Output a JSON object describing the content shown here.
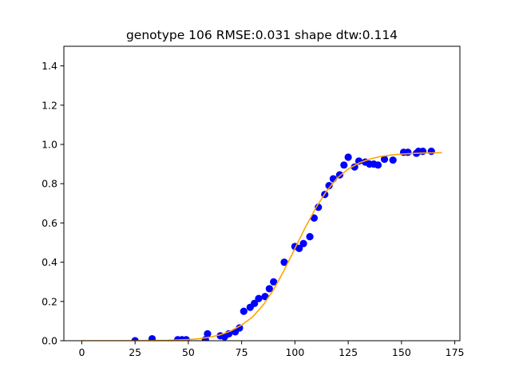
{
  "chart_data": {
    "type": "scatter",
    "title": "genotype 106 RMSE:0.031 shape dtw:0.114",
    "xlabel": "",
    "ylabel": "",
    "xlim": [
      -8.4,
      177.4
    ],
    "ylim": [
      0.0,
      1.5
    ],
    "xticks": [
      0,
      25,
      50,
      75,
      100,
      125,
      150,
      175
    ],
    "yticks": [
      0.0,
      0.2,
      0.4,
      0.6,
      0.8,
      1.0,
      1.2,
      1.4
    ],
    "xtick_labels": [
      "0",
      "25",
      "50",
      "75",
      "100",
      "125",
      "150",
      "175"
    ],
    "ytick_labels": [
      "0.0",
      "0.2",
      "0.4",
      "0.6",
      "0.8",
      "1.0",
      "1.2",
      "1.4"
    ],
    "grid": false,
    "legend": "none",
    "series": [
      {
        "kind": "scatter",
        "color": "#0000ff",
        "points": [
          [
            25,
            0.0
          ],
          [
            33,
            0.01
          ],
          [
            45,
            0.005
          ],
          [
            47,
            0.005
          ],
          [
            49,
            0.005
          ],
          [
            58,
            0.005
          ],
          [
            59,
            0.035
          ],
          [
            65,
            0.025
          ],
          [
            67,
            0.02
          ],
          [
            69,
            0.035
          ],
          [
            72,
            0.045
          ],
          [
            74,
            0.065
          ],
          [
            76,
            0.15
          ],
          [
            79,
            0.17
          ],
          [
            81,
            0.19
          ],
          [
            83,
            0.215
          ],
          [
            86,
            0.225
          ],
          [
            88,
            0.265
          ],
          [
            90,
            0.3
          ],
          [
            95,
            0.4
          ],
          [
            100,
            0.48
          ],
          [
            102,
            0.47
          ],
          [
            104,
            0.495
          ],
          [
            107,
            0.53
          ],
          [
            109,
            0.625
          ],
          [
            111,
            0.68
          ],
          [
            114,
            0.745
          ],
          [
            116,
            0.79
          ],
          [
            118,
            0.825
          ],
          [
            121,
            0.845
          ],
          [
            123,
            0.895
          ],
          [
            125,
            0.935
          ],
          [
            128,
            0.885
          ],
          [
            130,
            0.915
          ],
          [
            133,
            0.91
          ],
          [
            135,
            0.9
          ],
          [
            137,
            0.9
          ],
          [
            139,
            0.895
          ],
          [
            142,
            0.925
          ],
          [
            146,
            0.92
          ],
          [
            151,
            0.96
          ],
          [
            153,
            0.96
          ],
          [
            157,
            0.955
          ],
          [
            158,
            0.965
          ],
          [
            160,
            0.965
          ],
          [
            164,
            0.965
          ]
        ]
      },
      {
        "kind": "line",
        "color": "#ffa500",
        "x": [
          0,
          10,
          20,
          30,
          40,
          50,
          55,
          60,
          65,
          70,
          75,
          80,
          85,
          90,
          95,
          100,
          105,
          110,
          115,
          120,
          125,
          130,
          135,
          140,
          145,
          150,
          155,
          160,
          165,
          169
        ],
        "y": [
          0.0,
          0.0,
          0.0,
          0.0005,
          0.002,
          0.006,
          0.01,
          0.018,
          0.03,
          0.05,
          0.08,
          0.12,
          0.18,
          0.26,
          0.36,
          0.47,
          0.58,
          0.68,
          0.765,
          0.83,
          0.875,
          0.905,
          0.925,
          0.938,
          0.946,
          0.951,
          0.954,
          0.956,
          0.957,
          0.958
        ]
      }
    ]
  }
}
